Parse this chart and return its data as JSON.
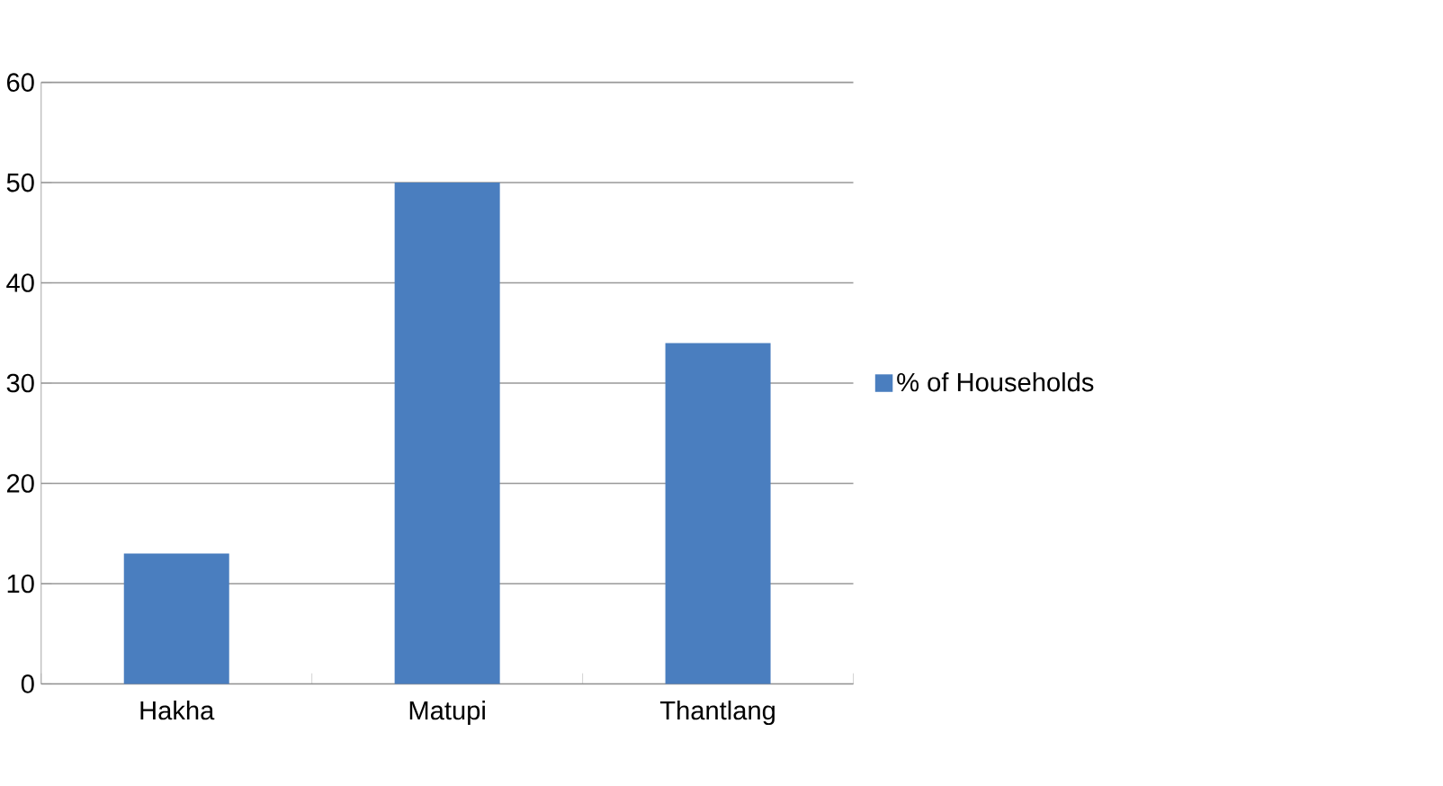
{
  "chart_data": {
    "type": "bar",
    "categories": [
      "Hakha",
      "Matupi",
      "Thantlang"
    ],
    "series": [
      {
        "name": "% of Households",
        "color": "#4a7ebf",
        "values": [
          13,
          50,
          34
        ]
      }
    ],
    "ylim": [
      0,
      60
    ],
    "yticks": [
      0,
      10,
      20,
      30,
      40,
      50,
      60
    ],
    "grid": "y",
    "legend": "right"
  }
}
